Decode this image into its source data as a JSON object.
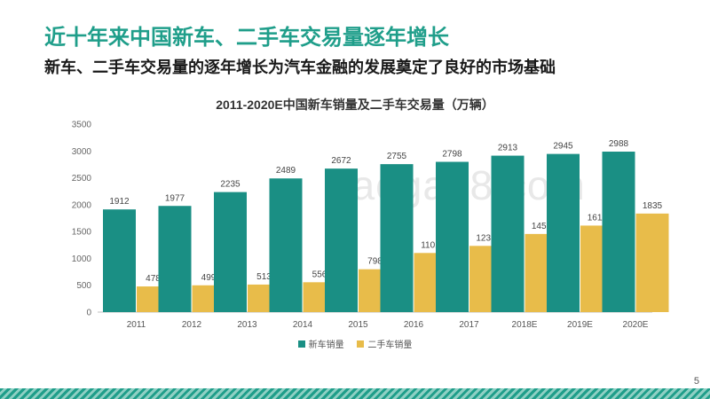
{
  "slide": {
    "title": "近十年来中国新车、二手车交易量逐年增长",
    "subtitle": "新车、二手车交易量的逐年增长为汽车金融的发展奠定了良好的市场基础",
    "page_number": "5",
    "watermark": "baogao8.com"
  },
  "colors": {
    "accent": "#1f9e8a",
    "new_car": "#1a8f84",
    "used_car": "#e8bc4a"
  },
  "chart_data": {
    "type": "bar",
    "title": "2011-2020E中国新车销量及二手车交易量（万辆）",
    "categories": [
      "2011",
      "2012",
      "2013",
      "2014",
      "2015",
      "2016",
      "2017",
      "2018E",
      "2019E",
      "2020E"
    ],
    "series": [
      {
        "name": "新车销量",
        "values": [
          1912,
          1977,
          2235,
          2489,
          2672,
          2755,
          2798,
          2913,
          2945,
          2988
        ]
      },
      {
        "name": "二手车销量",
        "values": [
          478,
          499,
          513,
          556,
          798,
          1101,
          1233,
          1455,
          1611,
          1835
        ]
      }
    ],
    "ylim": [
      0,
      3500
    ],
    "yticks": [
      0,
      500,
      1000,
      1500,
      2000,
      2500,
      3000,
      3500
    ],
    "grid": false,
    "legend": "bottom"
  }
}
